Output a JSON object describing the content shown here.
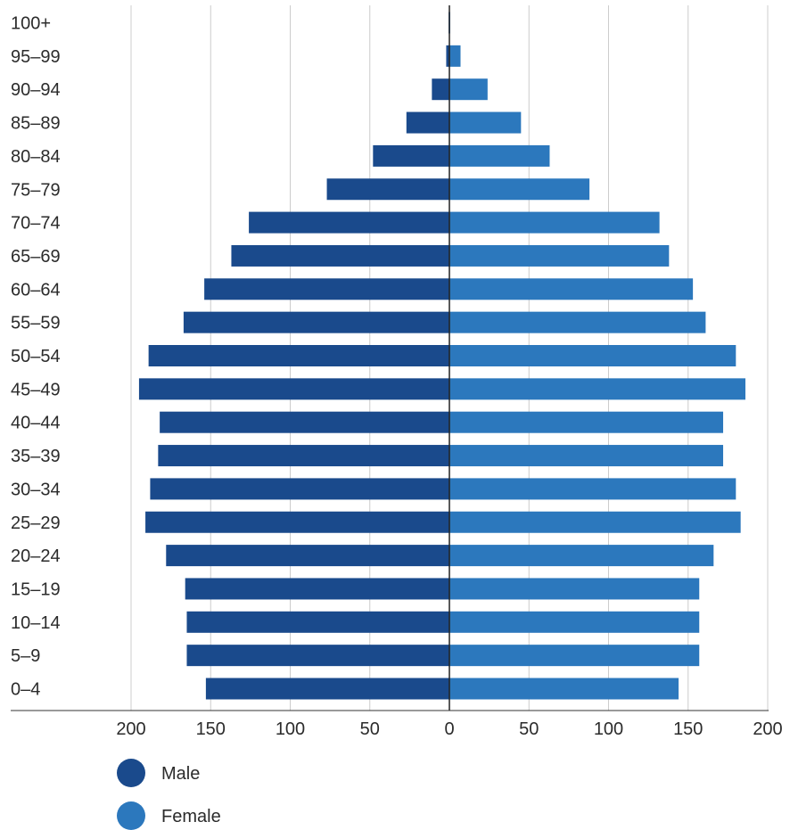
{
  "chart_data": {
    "type": "bar",
    "orientation": "horizontal",
    "layout": "population-pyramid",
    "categories": [
      "100+",
      "95-99",
      "90-94",
      "85-89",
      "80-84",
      "75-79",
      "70-74",
      "65-69",
      "60-64",
      "55-59",
      "50-54",
      "45-49",
      "40-44",
      "35-39",
      "30-34",
      "25-29",
      "20-24",
      "15-19",
      "10-14",
      "5-9",
      "0-4"
    ],
    "category_labels": [
      "100+",
      "95–99",
      "90–94",
      "85–89",
      "80–84",
      "75–79",
      "70–74",
      "65–69",
      "60–64",
      "55–59",
      "50–54",
      "45–49",
      "40–44",
      "35–39",
      "30–34",
      "25–29",
      "20–24",
      "15–19",
      "10–14",
      "5–9",
      "0–4"
    ],
    "series": [
      {
        "name": "Male",
        "side": "left",
        "color": "#1a4a8c",
        "values": [
          0.5,
          2,
          11,
          27,
          48,
          77,
          126,
          137,
          154,
          167,
          189,
          195,
          182,
          183,
          188,
          191,
          178,
          166,
          165,
          165,
          153
        ]
      },
      {
        "name": "Female",
        "side": "right",
        "color": "#2c78bd",
        "values": [
          0.5,
          7,
          24,
          45,
          63,
          88,
          132,
          138,
          153,
          161,
          180,
          186,
          172,
          172,
          180,
          183,
          166,
          157,
          157,
          157,
          144
        ]
      }
    ],
    "x_ticks": [
      {
        "value": -200,
        "label": "200"
      },
      {
        "value": -150,
        "label": "150"
      },
      {
        "value": -100,
        "label": "100"
      },
      {
        "value": -50,
        "label": "50"
      },
      {
        "value": 0,
        "label": "0"
      },
      {
        "value": 50,
        "label": "50"
      },
      {
        "value": 100,
        "label": "100"
      },
      {
        "value": 150,
        "label": "150"
      },
      {
        "value": 200,
        "label": "200"
      }
    ],
    "xlim": [
      -200,
      200
    ],
    "title": "",
    "xlabel": "",
    "ylabel": "",
    "grid": true,
    "legend_position": "bottom-left",
    "colors": {
      "grid": "#cccccc",
      "axis": "#333333",
      "zero_line": "#222222"
    }
  }
}
